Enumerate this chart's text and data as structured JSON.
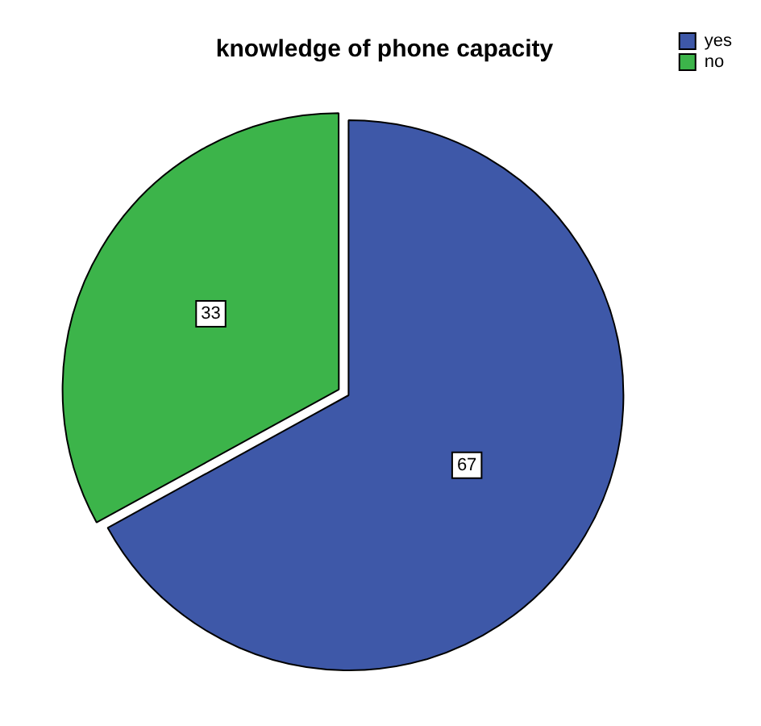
{
  "chart_data": {
    "type": "pie",
    "title": "knowledge of phone capacity",
    "categories": [
      "yes",
      "no"
    ],
    "values": [
      67,
      33
    ],
    "colors": [
      "#3e58a8",
      "#3cb44a"
    ],
    "data_labels": true,
    "legend": "top right"
  }
}
